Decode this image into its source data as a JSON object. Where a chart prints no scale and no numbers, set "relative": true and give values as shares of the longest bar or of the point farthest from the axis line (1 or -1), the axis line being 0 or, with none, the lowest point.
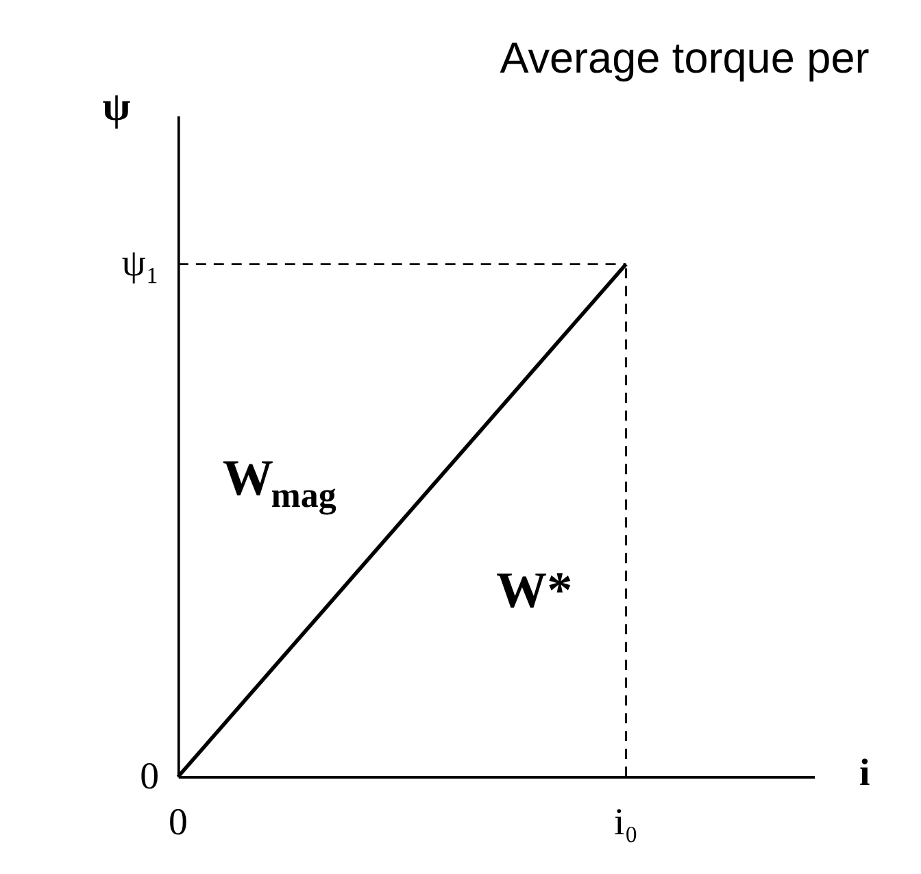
{
  "chart_data": {
    "type": "line",
    "title": "Average torque per",
    "relative": true,
    "xlabel": "i",
    "ylabel": "ψ",
    "categories": [
      null,
      null
    ],
    "series": [
      {
        "color": "#000000",
        "values": [
          0,
          1
        ]
      }
    ],
    "annotations": [
      "ψ₁",
      "0",
      "0",
      "i₀",
      "W$_{mag}$",
      "W*"
    ],
    "grid": false,
    "marker": "none",
    "line_style": "solid"
  }
}
